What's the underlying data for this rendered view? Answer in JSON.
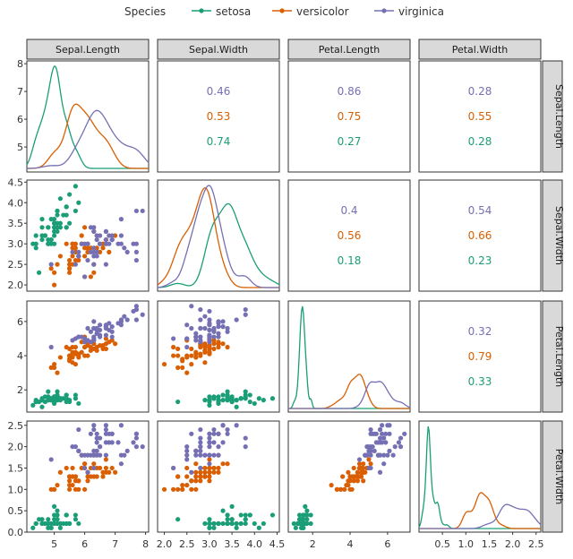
{
  "legend": {
    "title": "Species",
    "entries": [
      {
        "name": "setosa",
        "color": "#1b9e77"
      },
      {
        "name": "versicolor",
        "color": "#d95f02"
      },
      {
        "name": "virginica",
        "color": "#7570b3"
      }
    ],
    "placement": "top"
  },
  "chart_data": {
    "type": "scatter",
    "layout": "pairs-matrix",
    "variables": [
      "Sepal.Length",
      "Sepal.Width",
      "Petal.Length",
      "Petal.Width"
    ],
    "lower_panels": "scatter",
    "diagonal_panels": "density",
    "upper_panels": "correlation",
    "axes": {
      "Sepal.Length": {
        "range": [
          4.1,
          8.1
        ],
        "x_ticks": [
          5,
          6,
          7,
          8
        ],
        "y_ticks": [
          5,
          6,
          7,
          8
        ]
      },
      "Sepal.Width": {
        "range": [
          1.85,
          4.55
        ],
        "x_ticks": [
          "2.0",
          "2.5",
          "3.0",
          "3.5",
          "4.0",
          "4.5"
        ],
        "y_ticks": [
          "2.0",
          "2.5",
          "3.0",
          "3.5",
          "4.0",
          "4.5"
        ]
      },
      "Petal.Length": {
        "range": [
          0.7,
          7.2
        ],
        "x_ticks": [
          2,
          4,
          6
        ],
        "y_ticks": [
          2,
          4,
          6
        ]
      },
      "Petal.Width": {
        "range": [
          0,
          2.6
        ],
        "x_ticks": [
          "0.5",
          "1.0",
          "1.5",
          "2.0",
          "2.5"
        ],
        "y_ticks": [
          "0.0",
          "0.5",
          "1.0",
          "1.5",
          "2.0",
          "2.5"
        ]
      }
    },
    "correlations": [
      {
        "row": "Sepal.Length",
        "col": "Sepal.Width",
        "values": {
          "virginica": "0.46",
          "versicolor": "0.53",
          "setosa": "0.74"
        }
      },
      {
        "row": "Sepal.Length",
        "col": "Petal.Length",
        "values": {
          "virginica": "0.86",
          "versicolor": "0.75",
          "setosa": "0.27"
        }
      },
      {
        "row": "Sepal.Length",
        "col": "Petal.Width",
        "values": {
          "virginica": "0.28",
          "versicolor": "0.55",
          "setosa": "0.28"
        }
      },
      {
        "row": "Sepal.Width",
        "col": "Petal.Length",
        "values": {
          "virginica": "0.4",
          "versicolor": "0.56",
          "setosa": "0.18"
        }
      },
      {
        "row": "Sepal.Width",
        "col": "Petal.Width",
        "values": {
          "virginica": "0.54",
          "versicolor": "0.66",
          "setosa": "0.23"
        }
      },
      {
        "row": "Petal.Length",
        "col": "Petal.Width",
        "values": {
          "virginica": "0.32",
          "versicolor": "0.79",
          "setosa": "0.33"
        }
      }
    ],
    "points": {
      "setosa": [
        [
          5.1,
          3.5,
          1.4,
          0.2
        ],
        [
          4.9,
          3.0,
          1.4,
          0.2
        ],
        [
          4.7,
          3.2,
          1.3,
          0.2
        ],
        [
          4.6,
          3.1,
          1.5,
          0.2
        ],
        [
          5.0,
          3.6,
          1.4,
          0.2
        ],
        [
          5.4,
          3.9,
          1.7,
          0.4
        ],
        [
          4.6,
          3.4,
          1.4,
          0.3
        ],
        [
          5.0,
          3.4,
          1.5,
          0.2
        ],
        [
          4.4,
          2.9,
          1.4,
          0.2
        ],
        [
          4.9,
          3.1,
          1.5,
          0.1
        ],
        [
          5.4,
          3.7,
          1.5,
          0.2
        ],
        [
          4.8,
          3.4,
          1.6,
          0.2
        ],
        [
          4.8,
          3.0,
          1.4,
          0.1
        ],
        [
          4.3,
          3.0,
          1.1,
          0.1
        ],
        [
          5.8,
          4.0,
          1.2,
          0.2
        ],
        [
          5.7,
          4.4,
          1.5,
          0.4
        ],
        [
          5.4,
          3.9,
          1.3,
          0.4
        ],
        [
          5.1,
          3.5,
          1.4,
          0.3
        ],
        [
          5.7,
          3.8,
          1.7,
          0.3
        ],
        [
          5.1,
          3.8,
          1.5,
          0.3
        ],
        [
          5.4,
          3.4,
          1.7,
          0.2
        ],
        [
          5.1,
          3.7,
          1.5,
          0.4
        ],
        [
          4.6,
          3.6,
          1.0,
          0.2
        ],
        [
          5.1,
          3.3,
          1.7,
          0.5
        ],
        [
          4.8,
          3.4,
          1.9,
          0.2
        ],
        [
          5.0,
          3.0,
          1.6,
          0.2
        ],
        [
          5.0,
          3.4,
          1.6,
          0.4
        ],
        [
          5.2,
          3.5,
          1.5,
          0.2
        ],
        [
          5.2,
          3.4,
          1.4,
          0.2
        ],
        [
          4.7,
          3.2,
          1.6,
          0.2
        ],
        [
          4.8,
          3.1,
          1.6,
          0.2
        ],
        [
          5.4,
          3.4,
          1.5,
          0.4
        ],
        [
          5.2,
          4.1,
          1.5,
          0.1
        ],
        [
          5.5,
          4.2,
          1.4,
          0.2
        ],
        [
          4.9,
          3.1,
          1.5,
          0.2
        ],
        [
          5.0,
          3.2,
          1.2,
          0.2
        ],
        [
          5.5,
          3.5,
          1.3,
          0.2
        ],
        [
          4.9,
          3.6,
          1.4,
          0.1
        ],
        [
          4.4,
          3.0,
          1.3,
          0.2
        ],
        [
          5.1,
          3.4,
          1.5,
          0.2
        ],
        [
          5.0,
          3.5,
          1.3,
          0.3
        ],
        [
          4.5,
          2.3,
          1.3,
          0.3
        ],
        [
          4.4,
          3.2,
          1.3,
          0.2
        ],
        [
          5.0,
          3.5,
          1.6,
          0.6
        ],
        [
          5.1,
          3.8,
          1.9,
          0.4
        ],
        [
          4.8,
          3.0,
          1.4,
          0.3
        ],
        [
          5.1,
          3.8,
          1.6,
          0.2
        ],
        [
          4.6,
          3.2,
          1.4,
          0.2
        ],
        [
          5.3,
          3.7,
          1.5,
          0.2
        ],
        [
          5.0,
          3.3,
          1.4,
          0.2
        ]
      ],
      "versicolor": [
        [
          7.0,
          3.2,
          4.7,
          1.4
        ],
        [
          6.4,
          3.2,
          4.5,
          1.5
        ],
        [
          6.9,
          3.1,
          4.9,
          1.5
        ],
        [
          5.5,
          2.3,
          4.0,
          1.3
        ],
        [
          6.5,
          2.8,
          4.6,
          1.5
        ],
        [
          5.7,
          2.8,
          4.5,
          1.3
        ],
        [
          6.3,
          3.3,
          4.7,
          1.6
        ],
        [
          4.9,
          2.4,
          3.3,
          1.0
        ],
        [
          6.6,
          2.9,
          4.6,
          1.3
        ],
        [
          5.2,
          2.7,
          3.9,
          1.4
        ],
        [
          5.0,
          2.0,
          3.5,
          1.0
        ],
        [
          5.9,
          3.0,
          4.2,
          1.5
        ],
        [
          6.0,
          2.2,
          4.0,
          1.0
        ],
        [
          6.1,
          2.9,
          4.7,
          1.4
        ],
        [
          5.6,
          2.9,
          3.6,
          1.3
        ],
        [
          6.7,
          3.1,
          4.4,
          1.4
        ],
        [
          5.6,
          3.0,
          4.5,
          1.5
        ],
        [
          5.8,
          2.7,
          4.1,
          1.0
        ],
        [
          6.2,
          2.2,
          4.5,
          1.5
        ],
        [
          5.6,
          2.5,
          3.9,
          1.1
        ],
        [
          5.9,
          3.2,
          4.8,
          1.8
        ],
        [
          6.1,
          2.8,
          4.0,
          1.3
        ],
        [
          6.3,
          2.5,
          4.9,
          1.5
        ],
        [
          6.1,
          2.8,
          4.7,
          1.2
        ],
        [
          6.4,
          2.9,
          4.3,
          1.3
        ],
        [
          6.6,
          3.0,
          4.4,
          1.4
        ],
        [
          6.8,
          2.8,
          4.8,
          1.4
        ],
        [
          6.7,
          3.0,
          5.0,
          1.7
        ],
        [
          6.0,
          2.9,
          4.5,
          1.5
        ],
        [
          5.7,
          2.6,
          3.5,
          1.0
        ],
        [
          5.5,
          2.4,
          3.8,
          1.1
        ],
        [
          5.5,
          2.4,
          3.7,
          1.0
        ],
        [
          5.8,
          2.7,
          3.9,
          1.2
        ],
        [
          6.0,
          2.7,
          5.1,
          1.6
        ],
        [
          5.4,
          3.0,
          4.5,
          1.5
        ],
        [
          6.0,
          3.4,
          4.5,
          1.6
        ],
        [
          6.7,
          3.1,
          4.7,
          1.5
        ],
        [
          6.3,
          2.3,
          4.4,
          1.3
        ],
        [
          5.6,
          3.0,
          4.1,
          1.3
        ],
        [
          5.5,
          2.5,
          4.0,
          1.3
        ],
        [
          5.5,
          2.6,
          4.4,
          1.2
        ],
        [
          6.1,
          3.0,
          4.6,
          1.4
        ],
        [
          5.8,
          2.6,
          4.0,
          1.2
        ],
        [
          5.0,
          2.3,
          3.3,
          1.0
        ],
        [
          5.6,
          2.7,
          4.2,
          1.3
        ],
        [
          5.7,
          3.0,
          4.2,
          1.2
        ],
        [
          5.7,
          2.9,
          4.2,
          1.3
        ],
        [
          6.2,
          2.9,
          4.3,
          1.3
        ],
        [
          5.1,
          2.5,
          3.0,
          1.1
        ],
        [
          5.7,
          2.8,
          4.1,
          1.3
        ]
      ],
      "virginica": [
        [
          6.3,
          3.3,
          6.0,
          2.5
        ],
        [
          5.8,
          2.7,
          5.1,
          1.9
        ],
        [
          7.1,
          3.0,
          5.9,
          2.1
        ],
        [
          6.3,
          2.9,
          5.6,
          1.8
        ],
        [
          6.5,
          3.0,
          5.8,
          2.2
        ],
        [
          7.6,
          3.0,
          6.6,
          2.1
        ],
        [
          4.9,
          2.5,
          4.5,
          1.7
        ],
        [
          7.3,
          2.9,
          6.3,
          1.8
        ],
        [
          6.7,
          2.5,
          5.8,
          1.8
        ],
        [
          7.2,
          3.6,
          6.1,
          2.5
        ],
        [
          6.5,
          3.2,
          5.1,
          2.0
        ],
        [
          6.4,
          2.7,
          5.3,
          1.9
        ],
        [
          6.8,
          3.0,
          5.5,
          2.1
        ],
        [
          5.7,
          2.5,
          5.0,
          2.0
        ],
        [
          5.8,
          2.8,
          5.1,
          2.4
        ],
        [
          6.4,
          3.2,
          5.3,
          2.3
        ],
        [
          6.5,
          3.0,
          5.5,
          1.8
        ],
        [
          7.7,
          3.8,
          6.7,
          2.2
        ],
        [
          7.7,
          2.6,
          6.9,
          2.3
        ],
        [
          6.0,
          2.2,
          5.0,
          1.5
        ],
        [
          6.9,
          3.2,
          5.7,
          2.3
        ],
        [
          5.6,
          2.8,
          4.9,
          2.0
        ],
        [
          7.7,
          2.8,
          6.7,
          2.0
        ],
        [
          6.3,
          2.7,
          4.9,
          1.8
        ],
        [
          6.7,
          3.3,
          5.7,
          2.1
        ],
        [
          7.2,
          3.2,
          6.0,
          1.8
        ],
        [
          6.2,
          2.8,
          4.8,
          1.8
        ],
        [
          6.1,
          3.0,
          4.9,
          1.8
        ],
        [
          6.4,
          2.8,
          5.6,
          2.1
        ],
        [
          7.2,
          3.0,
          5.8,
          1.6
        ],
        [
          7.4,
          2.8,
          6.1,
          1.9
        ],
        [
          7.9,
          3.8,
          6.4,
          2.0
        ],
        [
          6.4,
          2.8,
          5.6,
          2.2
        ],
        [
          6.3,
          2.8,
          5.1,
          1.5
        ],
        [
          6.1,
          2.6,
          5.6,
          1.4
        ],
        [
          7.7,
          3.0,
          6.1,
          2.3
        ],
        [
          6.3,
          3.4,
          5.6,
          2.4
        ],
        [
          6.4,
          3.1,
          5.5,
          1.8
        ],
        [
          6.0,
          3.0,
          4.8,
          1.8
        ],
        [
          6.9,
          3.1,
          5.4,
          2.1
        ],
        [
          6.7,
          3.1,
          5.6,
          2.4
        ],
        [
          6.9,
          3.1,
          5.1,
          2.3
        ],
        [
          5.8,
          2.7,
          5.1,
          1.9
        ],
        [
          6.8,
          3.2,
          5.9,
          2.3
        ],
        [
          6.7,
          3.3,
          5.7,
          2.5
        ],
        [
          6.7,
          3.0,
          5.2,
          2.3
        ],
        [
          6.3,
          2.5,
          5.0,
          1.9
        ],
        [
          6.5,
          3.0,
          5.2,
          2.0
        ],
        [
          6.2,
          3.4,
          5.4,
          2.3
        ],
        [
          5.9,
          3.0,
          5.1,
          1.8
        ]
      ]
    },
    "grid": false
  }
}
